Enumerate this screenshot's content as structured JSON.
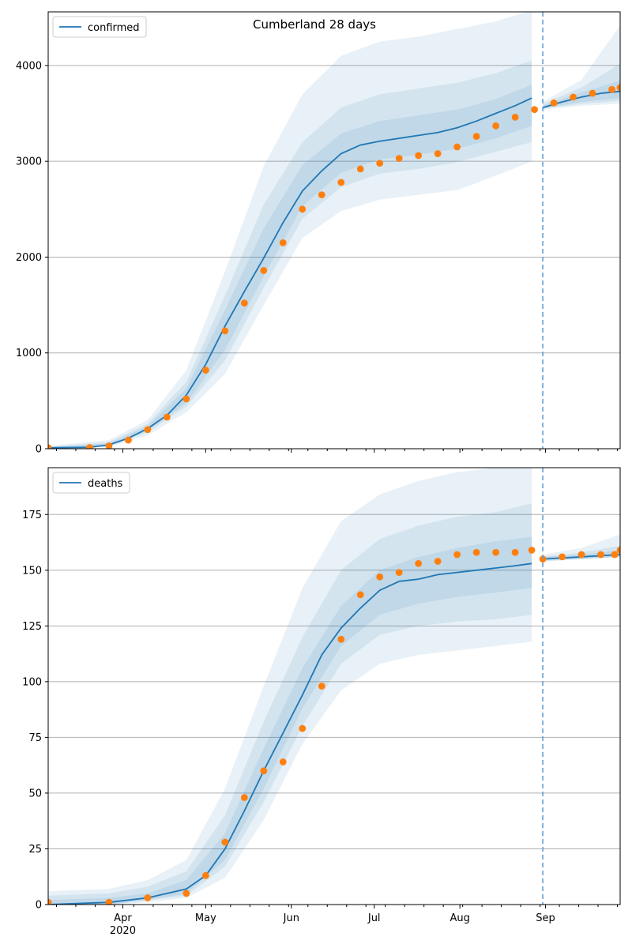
{
  "figure": {
    "title": "Cumberland 28 days"
  },
  "chart_data": [
    {
      "type": "line",
      "title": "Cumberland 28 days",
      "legend": {
        "entries": [
          "confirmed"
        ],
        "placement": "top-left"
      },
      "xlabel": "",
      "ylabel": "",
      "xlim": [
        "2020-03-05",
        "2020-09-28"
      ],
      "ylim": [
        0,
        4560
      ],
      "yticks": [
        0,
        1000,
        2000,
        3000,
        4000
      ],
      "ytick_labels": [
        "0",
        "1000",
        "2000",
        "3000",
        "4000"
      ],
      "grid": "horizontal",
      "forecast_start": "2020-08-31",
      "colors": {
        "model": "#1f77b4",
        "observed": "#ff7f0e",
        "band": "#1f77b4"
      },
      "series": [
        {
          "name": "confirmed",
          "kind": "model-median",
          "x": [
            "2020-03-05",
            "2020-03-20",
            "2020-03-27",
            "2020-04-03",
            "2020-04-10",
            "2020-04-17",
            "2020-04-24",
            "2020-05-01",
            "2020-05-08",
            "2020-05-15",
            "2020-05-22",
            "2020-05-29",
            "2020-06-05",
            "2020-06-12",
            "2020-06-19",
            "2020-06-26",
            "2020-07-03",
            "2020-07-10",
            "2020-07-17",
            "2020-07-24",
            "2020-07-31",
            "2020-08-07",
            "2020-08-14",
            "2020-08-21",
            "2020-08-27",
            "2020-08-31",
            "2020-09-07",
            "2020-09-14",
            "2020-09-21",
            "2020-09-28"
          ],
          "y": [
            10,
            15,
            40,
            110,
            210,
            350,
            560,
            880,
            1280,
            1640,
            1990,
            2360,
            2690,
            2900,
            3080,
            3170,
            3210,
            3240,
            3270,
            3300,
            3350,
            3420,
            3500,
            3580,
            3660,
            3560,
            3620,
            3670,
            3710,
            3730
          ]
        },
        {
          "name": "",
          "kind": "observed",
          "x": [
            "2020-03-05",
            "2020-03-20",
            "2020-03-27",
            "2020-04-03",
            "2020-04-10",
            "2020-04-17",
            "2020-04-24",
            "2020-05-01",
            "2020-05-08",
            "2020-05-15",
            "2020-05-22",
            "2020-05-29",
            "2020-06-05",
            "2020-06-12",
            "2020-06-19",
            "2020-06-26",
            "2020-07-03",
            "2020-07-10",
            "2020-07-17",
            "2020-07-24",
            "2020-07-31",
            "2020-08-07",
            "2020-08-14",
            "2020-08-21",
            "2020-08-28",
            "2020-09-04",
            "2020-09-11",
            "2020-09-18",
            "2020-09-25",
            "2020-09-28"
          ],
          "y": [
            10,
            12,
            30,
            90,
            200,
            330,
            520,
            820,
            1230,
            1520,
            1860,
            2150,
            2500,
            2650,
            2780,
            2920,
            2980,
            3030,
            3060,
            3080,
            3150,
            3260,
            3370,
            3460,
            3540,
            3610,
            3670,
            3710,
            3750,
            3770
          ]
        }
      ],
      "bands": [
        {
          "level": "outer",
          "x": [
            "2020-03-05",
            "2020-03-27",
            "2020-04-10",
            "2020-04-24",
            "2020-05-08",
            "2020-05-22",
            "2020-06-05",
            "2020-06-19",
            "2020-07-03",
            "2020-07-17",
            "2020-07-31",
            "2020-08-14",
            "2020-08-27",
            "2020-08-31",
            "2020-09-14",
            "2020-09-28"
          ],
          "low": [
            0,
            20,
            140,
            380,
            780,
            1500,
            2200,
            2480,
            2600,
            2650,
            2700,
            2850,
            3000,
            3540,
            3580,
            3600
          ],
          "high": [
            30,
            90,
            300,
            820,
            1850,
            2950,
            3700,
            4100,
            4250,
            4300,
            4380,
            4460,
            4580,
            3620,
            3850,
            4420
          ]
        },
        {
          "level": "mid",
          "x": [
            "2020-03-05",
            "2020-03-27",
            "2020-04-10",
            "2020-04-24",
            "2020-05-08",
            "2020-05-22",
            "2020-06-05",
            "2020-06-19",
            "2020-07-03",
            "2020-07-17",
            "2020-07-31",
            "2020-08-14",
            "2020-08-27",
            "2020-08-31",
            "2020-09-14",
            "2020-09-28"
          ],
          "low": [
            0,
            25,
            170,
            440,
            920,
            1680,
            2400,
            2730,
            2870,
            2920,
            2990,
            3100,
            3200,
            3550,
            3600,
            3630
          ],
          "high": [
            20,
            70,
            260,
            700,
            1600,
            2550,
            3200,
            3560,
            3700,
            3760,
            3820,
            3920,
            4050,
            3600,
            3770,
            4020
          ]
        },
        {
          "level": "inner",
          "x": [
            "2020-03-05",
            "2020-03-27",
            "2020-04-10",
            "2020-04-24",
            "2020-05-08",
            "2020-05-22",
            "2020-06-05",
            "2020-06-19",
            "2020-07-03",
            "2020-07-17",
            "2020-07-31",
            "2020-08-14",
            "2020-08-27",
            "2020-08-31",
            "2020-09-14",
            "2020-09-28"
          ],
          "low": [
            0,
            30,
            185,
            480,
            1030,
            1800,
            2530,
            2880,
            3020,
            3070,
            3130,
            3240,
            3370,
            3555,
            3620,
            3660
          ],
          "high": [
            15,
            55,
            235,
            630,
            1450,
            2300,
            2960,
            3290,
            3420,
            3480,
            3540,
            3650,
            3800,
            3580,
            3720,
            3840
          ]
        }
      ]
    },
    {
      "type": "line",
      "title": "",
      "legend": {
        "entries": [
          "deaths"
        ],
        "placement": "top-left"
      },
      "xlabel": "",
      "ylabel": "",
      "xlim": [
        "2020-03-05",
        "2020-09-28"
      ],
      "ylim": [
        0,
        196
      ],
      "yticks": [
        0,
        25,
        50,
        75,
        100,
        125,
        150,
        175
      ],
      "ytick_labels": [
        "0",
        "25",
        "50",
        "75",
        "100",
        "125",
        "150",
        "175"
      ],
      "xticks": [
        "2020-04-01",
        "2020-05-01",
        "2020-06-01",
        "2020-07-01",
        "2020-08-01",
        "2020-09-01"
      ],
      "xtick_labels": [
        "Apr",
        "May",
        "Jun",
        "Jul",
        "Aug",
        "Sep"
      ],
      "xtick_sublabel": "2020",
      "grid": "horizontal",
      "forecast_start": "2020-08-31",
      "series": [
        {
          "name": "deaths",
          "kind": "model-median",
          "x": [
            "2020-03-05",
            "2020-03-27",
            "2020-04-10",
            "2020-04-24",
            "2020-05-01",
            "2020-05-08",
            "2020-05-15",
            "2020-05-22",
            "2020-05-29",
            "2020-06-05",
            "2020-06-12",
            "2020-06-19",
            "2020-06-26",
            "2020-07-03",
            "2020-07-10",
            "2020-07-17",
            "2020-07-24",
            "2020-07-31",
            "2020-08-07",
            "2020-08-14",
            "2020-08-21",
            "2020-08-27",
            "2020-08-31",
            "2020-09-14",
            "2020-09-28"
          ],
          "y": [
            0,
            1,
            3,
            7,
            13,
            25,
            42,
            60,
            77,
            94,
            112,
            124,
            133,
            141,
            145,
            146,
            148,
            149,
            150,
            151,
            152,
            153,
            155,
            156,
            157
          ]
        },
        {
          "name": "",
          "kind": "observed",
          "x": [
            "2020-03-05",
            "2020-03-27",
            "2020-04-10",
            "2020-04-24",
            "2020-05-01",
            "2020-05-08",
            "2020-05-15",
            "2020-05-22",
            "2020-05-29",
            "2020-06-05",
            "2020-06-12",
            "2020-06-19",
            "2020-06-26",
            "2020-07-03",
            "2020-07-10",
            "2020-07-17",
            "2020-07-24",
            "2020-07-31",
            "2020-08-07",
            "2020-08-14",
            "2020-08-21",
            "2020-08-27",
            "2020-08-31",
            "2020-09-07",
            "2020-09-14",
            "2020-09-21",
            "2020-09-26",
            "2020-09-28"
          ],
          "y": [
            1,
            1,
            3,
            5,
            13,
            28,
            48,
            60,
            64,
            79,
            98,
            119,
            139,
            147,
            149,
            153,
            154,
            157,
            158,
            158,
            158,
            159,
            155,
            156,
            157,
            157,
            157,
            159
          ]
        }
      ],
      "bands": [
        {
          "level": "outer",
          "x": [
            "2020-03-05",
            "2020-03-27",
            "2020-04-10",
            "2020-04-24",
            "2020-05-08",
            "2020-05-22",
            "2020-06-05",
            "2020-06-19",
            "2020-07-03",
            "2020-07-17",
            "2020-07-31",
            "2020-08-14",
            "2020-08-27",
            "2020-08-31",
            "2020-09-14",
            "2020-09-28"
          ],
          "low": [
            0,
            0,
            1,
            3,
            12,
            38,
            72,
            96,
            108,
            112,
            114,
            116,
            118,
            154,
            155,
            156
          ],
          "high": [
            6,
            7,
            11,
            20,
            52,
            98,
            142,
            172,
            184,
            190,
            194,
            196,
            196,
            157,
            160,
            166
          ]
        },
        {
          "level": "mid",
          "x": [
            "2020-03-05",
            "2020-03-27",
            "2020-04-10",
            "2020-04-24",
            "2020-05-08",
            "2020-05-22",
            "2020-06-05",
            "2020-06-19",
            "2020-07-03",
            "2020-07-17",
            "2020-07-31",
            "2020-08-14",
            "2020-08-27",
            "2020-08-31",
            "2020-09-14",
            "2020-09-28"
          ],
          "low": [
            0,
            0,
            2,
            4,
            17,
            46,
            80,
            108,
            121,
            125,
            127,
            128,
            130,
            154,
            155,
            156
          ],
          "high": [
            4,
            5,
            8,
            15,
            40,
            82,
            120,
            150,
            164,
            170,
            174,
            176,
            180,
            156,
            158,
            161
          ]
        },
        {
          "level": "inner",
          "x": [
            "2020-03-05",
            "2020-03-27",
            "2020-04-10",
            "2020-04-24",
            "2020-05-08",
            "2020-05-22",
            "2020-06-05",
            "2020-06-19",
            "2020-07-03",
            "2020-07-17",
            "2020-07-31",
            "2020-08-14",
            "2020-08-27",
            "2020-08-31",
            "2020-09-14",
            "2020-09-28"
          ],
          "low": [
            0,
            0,
            2,
            5,
            20,
            52,
            88,
            116,
            130,
            135,
            138,
            140,
            142,
            155,
            155,
            156
          ],
          "high": [
            2,
            3,
            5,
            11,
            32,
            70,
            106,
            134,
            150,
            156,
            160,
            163,
            165,
            156,
            157,
            159
          ]
        }
      ]
    }
  ]
}
